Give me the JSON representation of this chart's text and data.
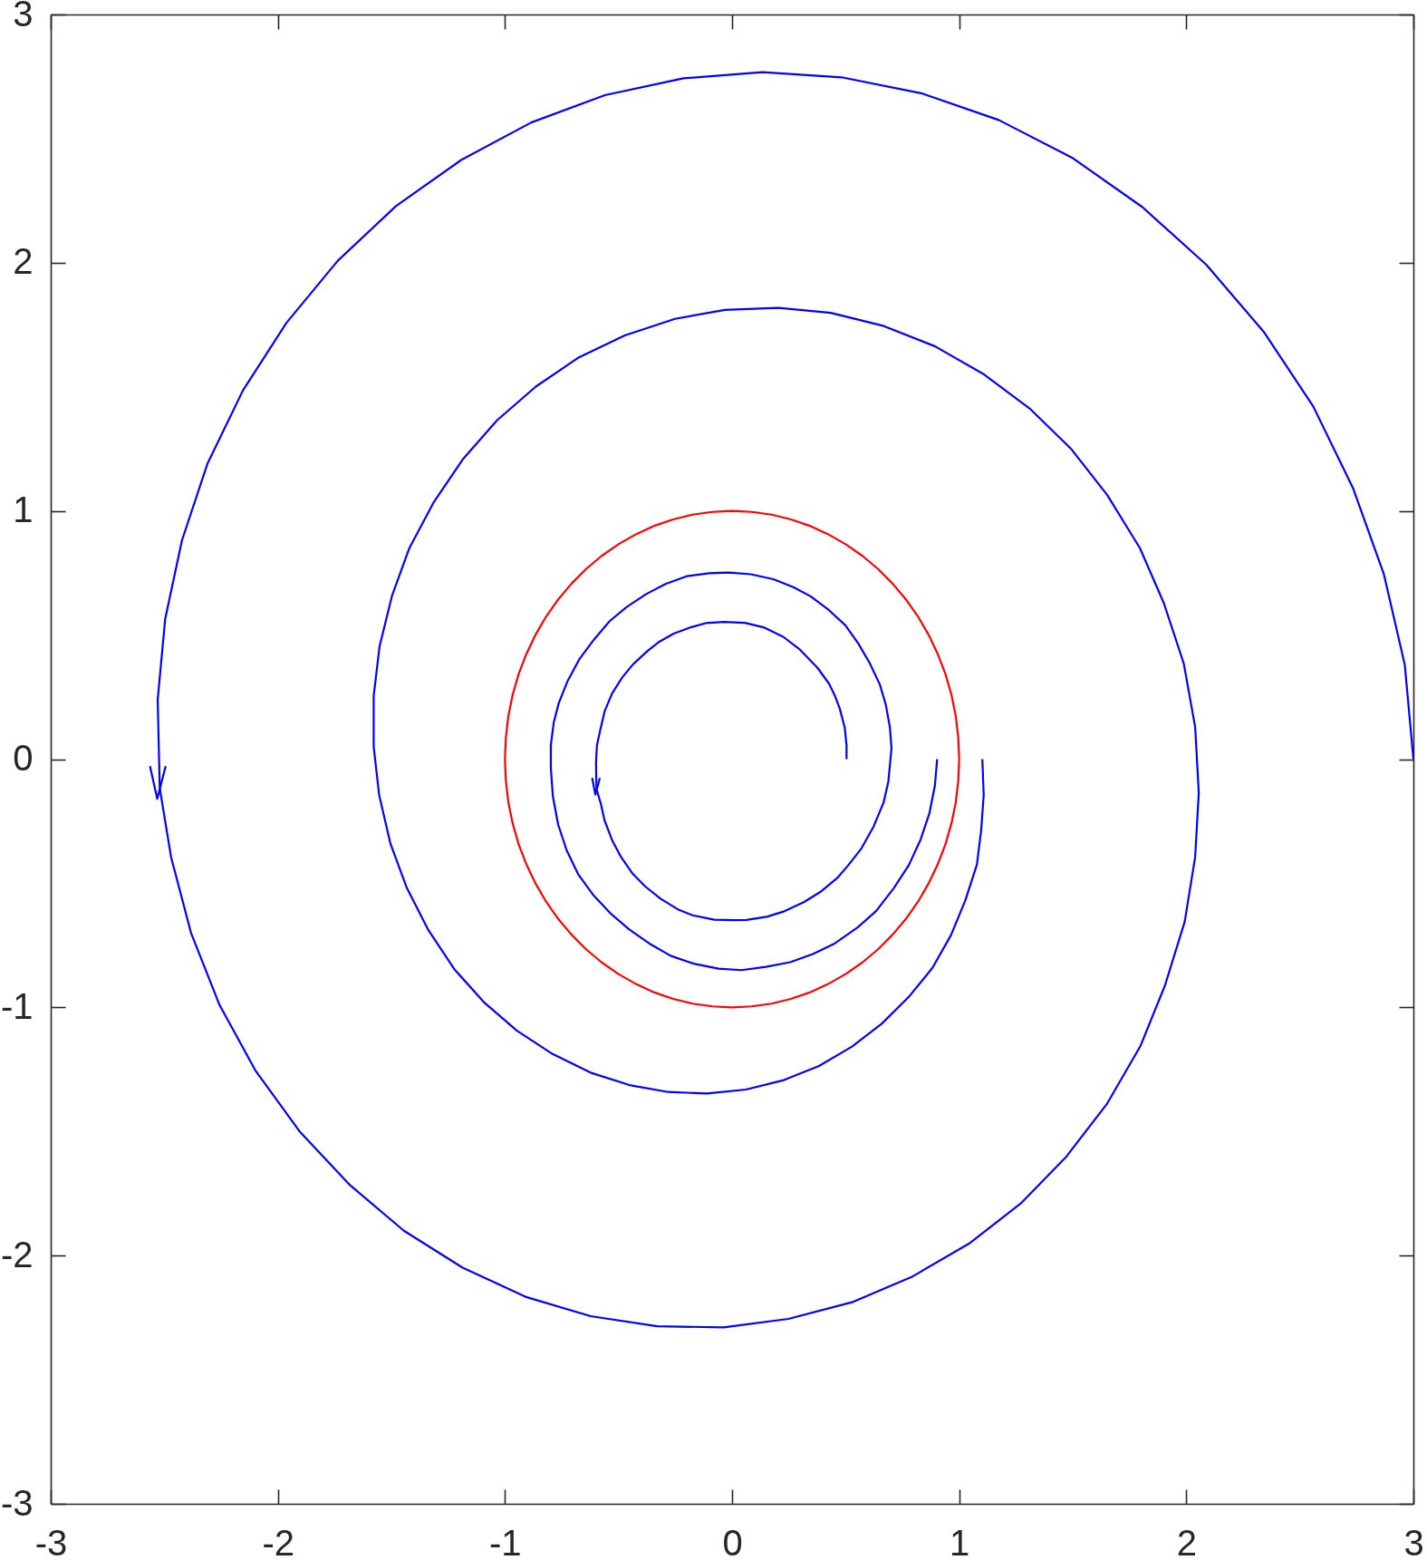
{
  "chart_data": {
    "type": "line",
    "xlim": [
      -3,
      3
    ],
    "ylim": [
      -3,
      3
    ],
    "xticks": [
      -3,
      -2,
      -1,
      0,
      1,
      2,
      3
    ],
    "yticks": [
      -3,
      -2,
      -1,
      0,
      1,
      2,
      3
    ],
    "line_style": "solid",
    "series": [
      {
        "color": "#0000ff",
        "x": [
          3.0,
          2.962,
          2.87,
          2.734,
          2.559,
          2.34,
          2.088,
          1.807,
          1.501,
          1.174,
          0.832,
          0.482,
          0.134,
          -0.214,
          -0.56,
          -0.884,
          -1.191,
          -1.48,
          -1.736,
          -1.962,
          -2.154,
          -2.31,
          -2.422,
          -2.496,
          -2.529,
          -2.52,
          -2.47,
          -2.382,
          -2.257,
          -2.097,
          -1.905,
          -1.686,
          -1.445,
          -1.184,
          -0.91,
          -0.623,
          -0.33,
          -0.037,
          0.248,
          0.528,
          0.795,
          1.043,
          1.271,
          1.472,
          1.652,
          1.798,
          1.906,
          1.993,
          2.039,
          2.055,
          2.039,
          1.989,
          1.901,
          1.796,
          1.652,
          1.492,
          1.31,
          1.104,
          0.894,
          0.668,
          0.434,
          0.204,
          -0.031,
          -0.251,
          -0.472,
          -0.674,
          -0.864,
          -1.035,
          -1.184,
          -1.313,
          -1.421,
          -1.497,
          -1.552,
          -1.578,
          -1.578,
          -1.554,
          -1.504,
          -1.432,
          -1.337,
          -1.223,
          -1.094,
          -0.947,
          -0.79,
          -0.623,
          -0.452,
          -0.281,
          -0.111,
          0.061,
          0.228,
          0.383,
          0.528,
          0.659,
          0.778,
          0.883,
          0.964,
          1.027,
          1.078,
          1.097,
          1.108,
          1.102
        ],
        "values": [
          0.0,
          0.381,
          0.745,
          1.092,
          1.421,
          1.723,
          1.992,
          2.224,
          2.421,
          2.575,
          2.683,
          2.747,
          2.768,
          2.743,
          2.675,
          2.565,
          2.415,
          2.228,
          2.008,
          1.758,
          1.485,
          1.19,
          0.882,
          0.565,
          0.24,
          -0.117,
          -0.395,
          -0.701,
          -0.99,
          -1.257,
          -1.499,
          -1.713,
          -1.9,
          -2.05,
          -2.166,
          -2.244,
          -2.285,
          -2.289,
          -2.255,
          -2.188,
          -2.084,
          -1.952,
          -1.79,
          -1.601,
          -1.387,
          -1.156,
          -0.912,
          -0.655,
          -0.395,
          -0.135,
          0.13,
          0.385,
          0.629,
          0.85,
          1.064,
          1.251,
          1.413,
          1.553,
          1.663,
          1.745,
          1.798,
          1.818,
          1.81,
          1.774,
          1.707,
          1.619,
          1.501,
          1.365,
          1.21,
          1.036,
          0.85,
          0.659,
          0.455,
          0.255,
          0.05,
          -0.144,
          -0.341,
          -0.519,
          -0.689,
          -0.846,
          -0.978,
          -1.094,
          -1.188,
          -1.263,
          -1.313,
          -1.341,
          -1.347,
          -1.331,
          -1.293,
          -1.236,
          -1.158,
          -1.066,
          -0.958,
          -0.84,
          -0.709,
          -0.569,
          -0.425,
          -0.285,
          -0.144,
          0.0
        ]
      },
      {
        "color": "#0000ff",
        "x": [
          -2.563,
          -2.531,
          -2.494
        ],
        "values": [
          -0.028,
          -0.16,
          -0.028
        ]
      },
      {
        "color": "#0000ff",
        "x": [
          0.504,
          0.504,
          0.496,
          0.474,
          0.453,
          0.427,
          0.377,
          0.299,
          0.225,
          0.139,
          0.056,
          -0.035,
          -0.116,
          -0.179,
          -0.257,
          -0.319,
          -0.371,
          -0.436,
          -0.483,
          -0.528,
          -0.561,
          -0.579,
          -0.595,
          -0.599,
          -0.597,
          -0.578,
          -0.561,
          -0.527,
          -0.491,
          -0.44,
          -0.381,
          -0.314,
          -0.239,
          -0.174,
          -0.079,
          0.006,
          0.063,
          0.153,
          0.23,
          0.316,
          0.392,
          0.463,
          0.513,
          0.57,
          0.624,
          0.667,
          0.688,
          0.702,
          0.695,
          0.677,
          0.651,
          0.605,
          0.555,
          0.499,
          0.427,
          0.346,
          0.27,
          0.182,
          0.082,
          -0.015,
          -0.1,
          -0.2,
          -0.293,
          -0.378,
          -0.464,
          -0.539,
          -0.606,
          -0.673,
          -0.725,
          -0.763,
          -0.785,
          -0.798,
          -0.798,
          -0.789,
          -0.766,
          -0.728,
          -0.678,
          -0.609,
          -0.531,
          -0.454,
          -0.364,
          -0.271,
          -0.169,
          -0.06,
          0.042,
          0.149,
          0.256,
          0.356,
          0.453,
          0.553,
          0.634,
          0.712,
          0.779,
          0.831,
          0.869,
          0.893,
          0.903
        ],
        "values": [
          0.0,
          0.056,
          0.128,
          0.204,
          0.255,
          0.304,
          0.367,
          0.441,
          0.493,
          0.531,
          0.549,
          0.553,
          0.548,
          0.532,
          0.506,
          0.474,
          0.437,
          0.382,
          0.33,
          0.265,
          0.193,
          0.123,
          0.056,
          -0.015,
          -0.12,
          -0.179,
          -0.248,
          -0.329,
          -0.391,
          -0.459,
          -0.514,
          -0.563,
          -0.605,
          -0.629,
          -0.647,
          -0.649,
          -0.648,
          -0.635,
          -0.613,
          -0.576,
          -0.533,
          -0.479,
          -0.426,
          -0.359,
          -0.27,
          -0.175,
          -0.091,
          0.043,
          0.128,
          0.219,
          0.3,
          0.389,
          0.467,
          0.539,
          0.6,
          0.656,
          0.693,
          0.725,
          0.745,
          0.752,
          0.749,
          0.737,
          0.706,
          0.665,
          0.613,
          0.556,
          0.484,
          0.402,
          0.313,
          0.226,
          0.148,
          0.056,
          -0.035,
          -0.15,
          -0.263,
          -0.368,
          -0.463,
          -0.55,
          -0.625,
          -0.685,
          -0.743,
          -0.792,
          -0.824,
          -0.844,
          -0.85,
          -0.837,
          -0.818,
          -0.785,
          -0.742,
          -0.678,
          -0.612,
          -0.52,
          -0.426,
          -0.322,
          -0.218,
          -0.107,
          0.0
        ]
      },
      {
        "color": "#0000ff",
        "x": [
          -0.616,
          -0.602,
          -0.582
        ],
        "values": [
          -0.076,
          -0.143,
          -0.076
        ]
      },
      {
        "color": "#ff0000",
        "x": [
          1.0,
          0.996,
          0.985,
          0.966,
          0.94,
          0.906,
          0.866,
          0.819,
          0.766,
          0.707,
          0.643,
          0.574,
          0.5,
          0.423,
          0.342,
          0.259,
          0.174,
          0.087,
          0.0,
          -0.087,
          -0.174,
          -0.259,
          -0.342,
          -0.423,
          -0.5,
          -0.574,
          -0.643,
          -0.707,
          -0.766,
          -0.819,
          -0.866,
          -0.906,
          -0.94,
          -0.966,
          -0.985,
          -0.996,
          -1.0,
          -0.996,
          -0.985,
          -0.966,
          -0.94,
          -0.906,
          -0.866,
          -0.819,
          -0.766,
          -0.707,
          -0.643,
          -0.574,
          -0.5,
          -0.423,
          -0.342,
          -0.259,
          -0.174,
          -0.087,
          0.0,
          0.087,
          0.174,
          0.259,
          0.342,
          0.423,
          0.5,
          0.574,
          0.643,
          0.707,
          0.766,
          0.819,
          0.866,
          0.906,
          0.94,
          0.966,
          0.985,
          0.996,
          1.0,
          0.996
        ],
        "values": [
          0.0,
          0.087,
          0.174,
          0.259,
          0.342,
          0.423,
          0.5,
          0.574,
          0.643,
          0.707,
          0.766,
          0.819,
          0.866,
          0.906,
          0.94,
          0.966,
          0.985,
          0.996,
          1.0,
          0.996,
          0.985,
          0.966,
          0.94,
          0.906,
          0.866,
          0.819,
          0.766,
          0.707,
          0.643,
          0.574,
          0.5,
          0.423,
          0.342,
          0.259,
          0.174,
          0.087,
          0.0,
          -0.087,
          -0.174,
          -0.259,
          -0.342,
          -0.423,
          -0.5,
          -0.574,
          -0.643,
          -0.707,
          -0.766,
          -0.819,
          -0.866,
          -0.906,
          -0.94,
          -0.966,
          -0.985,
          -0.996,
          -1.0,
          -0.996,
          -0.985,
          -0.966,
          -0.94,
          -0.906,
          -0.866,
          -0.819,
          -0.766,
          -0.707,
          -0.643,
          -0.574,
          -0.5,
          -0.423,
          -0.342,
          -0.259,
          -0.174,
          -0.087,
          0.0,
          0.087
        ]
      }
    ]
  }
}
